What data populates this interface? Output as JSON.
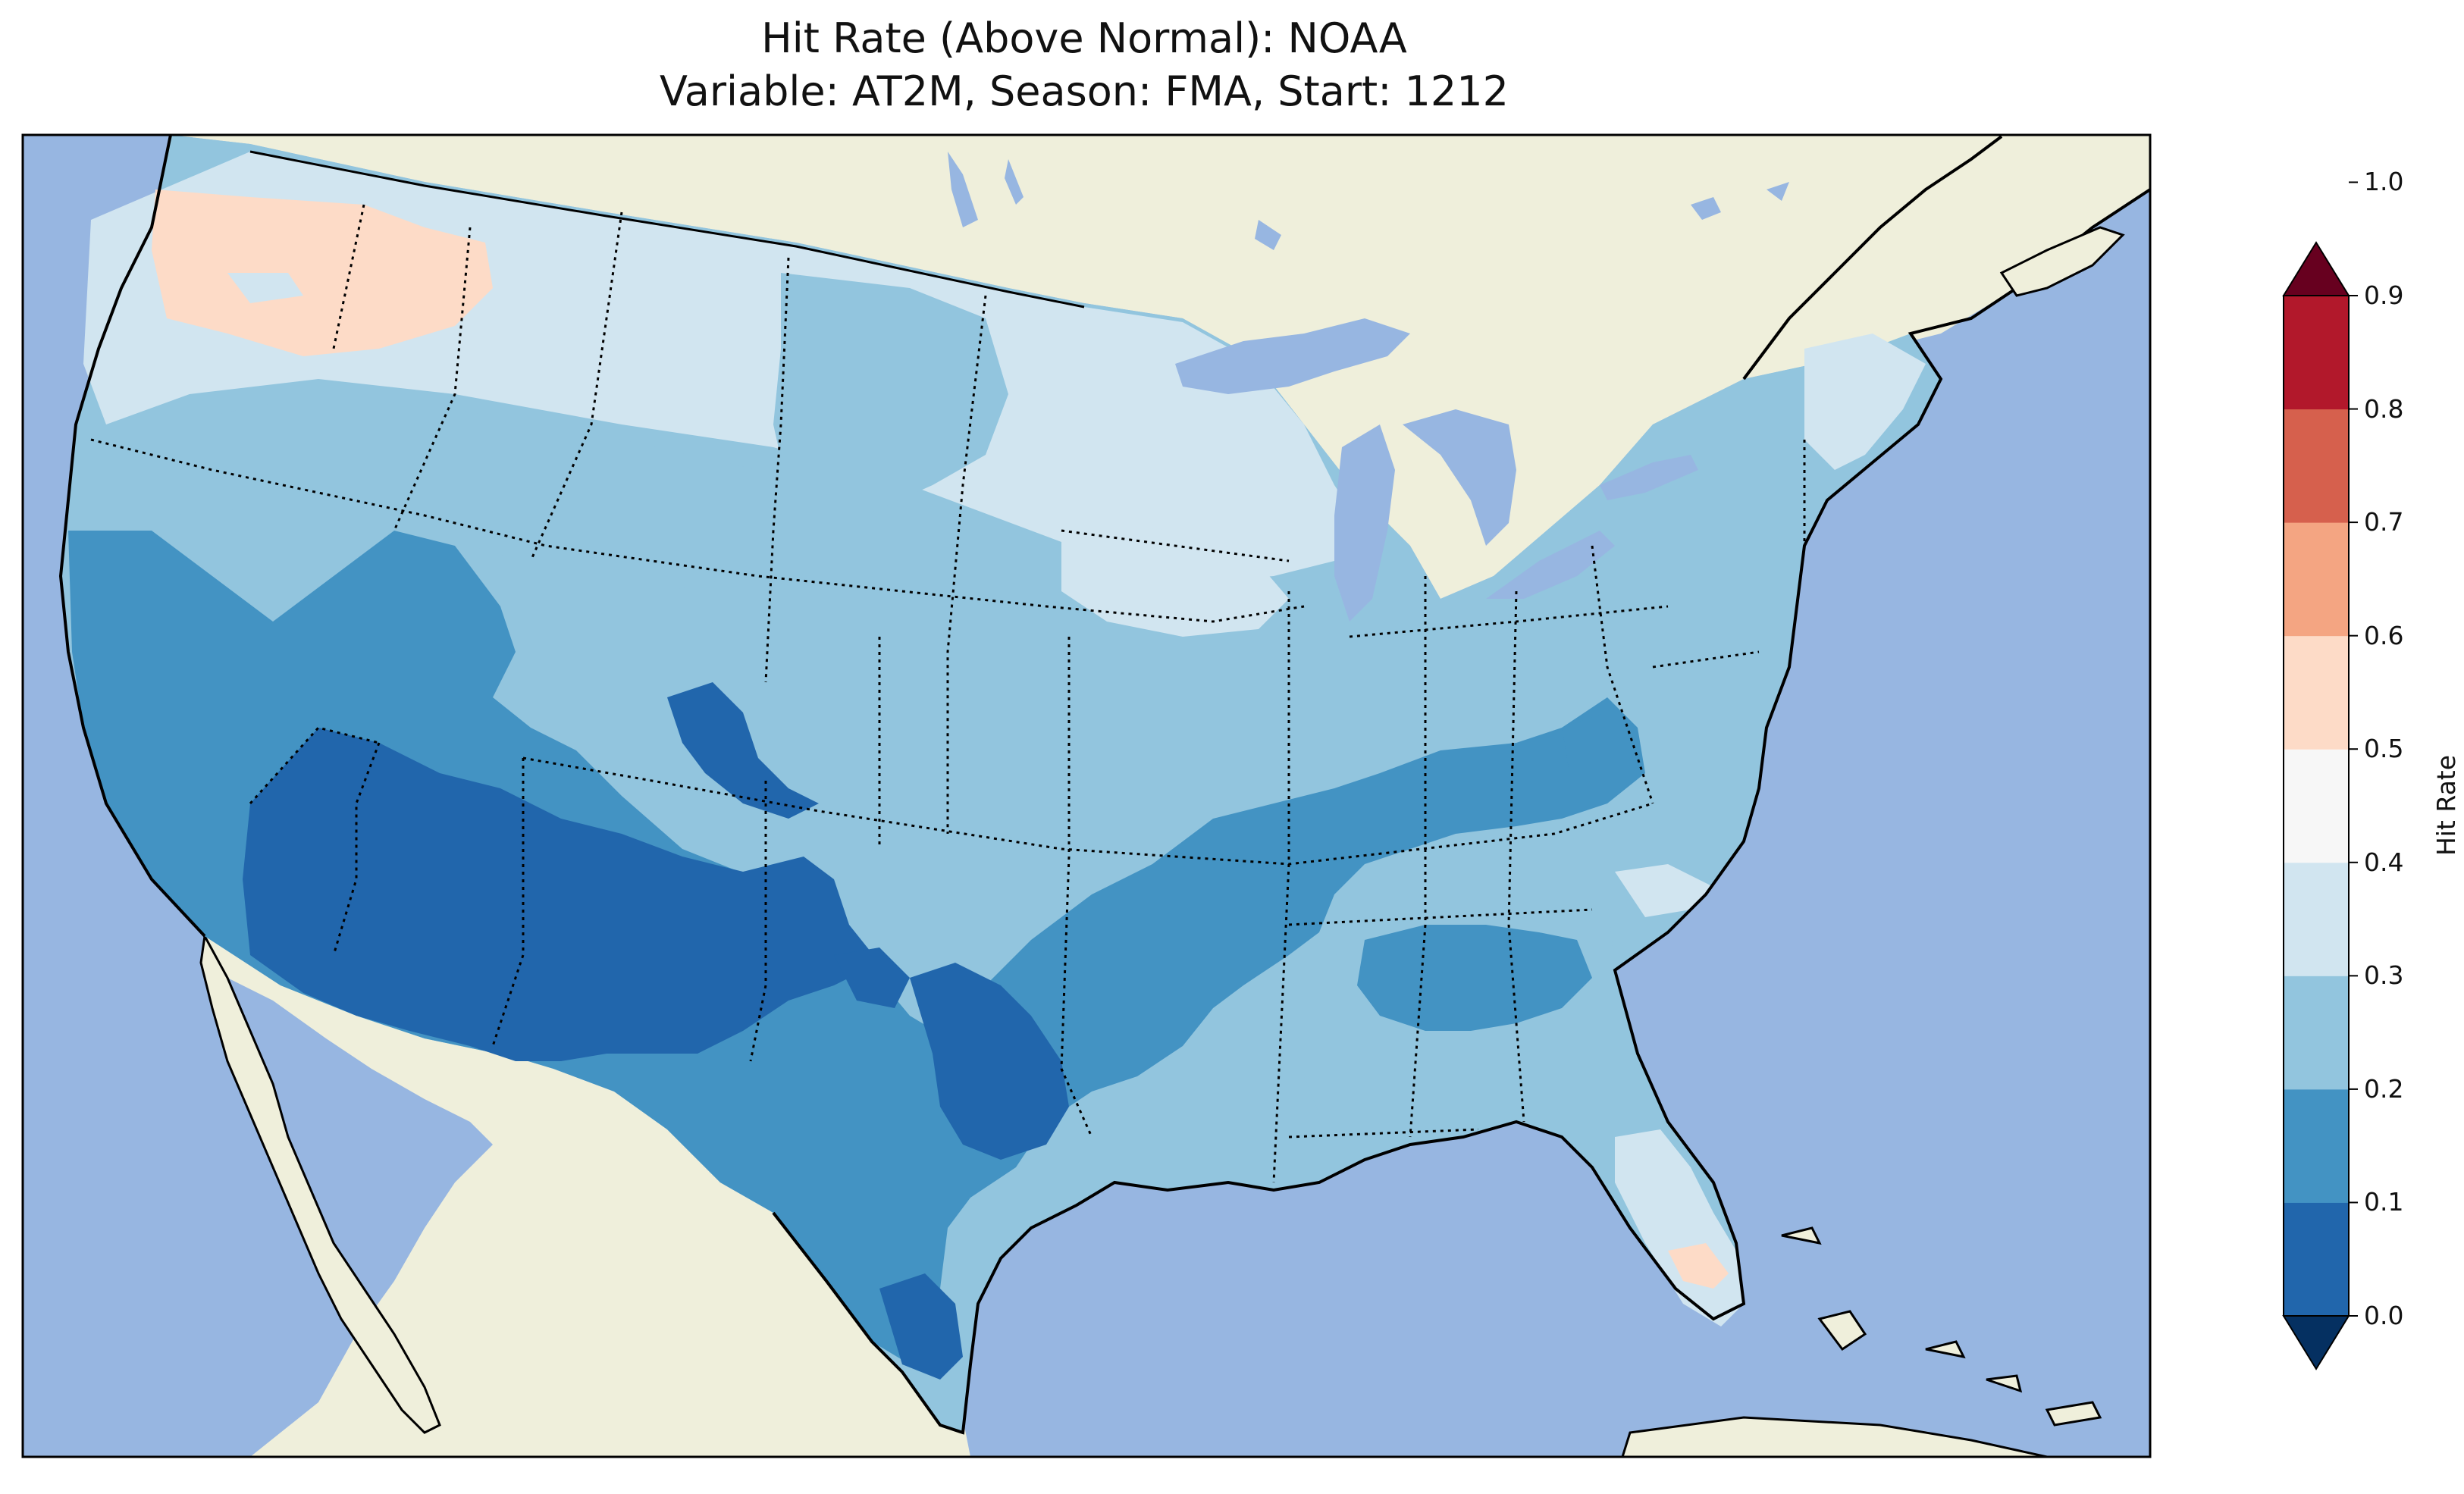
{
  "title": "Hit Rate (Above Normal): NOAA",
  "subtitle": "Variable: AT2M, Season: FMA, Start: 1212",
  "colorbar": {
    "label": "Hit Rate",
    "ticks": [
      "0.0",
      "0.1",
      "0.2",
      "0.3",
      "0.4",
      "0.5",
      "0.6",
      "0.7",
      "0.8",
      "0.9",
      "1.0"
    ],
    "colors": [
      "#053061",
      "#2166ac",
      "#4393c3",
      "#92c5de",
      "#d1e5f0",
      "#f7f7f7",
      "#fddbc7",
      "#f4a582",
      "#d6604d",
      "#b2182b",
      "#67001f"
    ],
    "extend": "both"
  },
  "map": {
    "ocean_color": "#97b6e1",
    "land_color": "#efefdb",
    "regions": [
      {
        "name": "pacific-northwest",
        "level": 0.55
      },
      {
        "name": "northern-tier",
        "level": 0.45
      },
      {
        "name": "northern-plains",
        "level": 0.35
      },
      {
        "name": "great-lakes",
        "level": 0.45
      },
      {
        "name": "northeast",
        "level": 0.35
      },
      {
        "name": "intermountain-west",
        "level": 0.35
      },
      {
        "name": "california-great-basin",
        "level": 0.25
      },
      {
        "name": "southwest",
        "level": 0.15
      },
      {
        "name": "southern-plains",
        "level": 0.25
      },
      {
        "name": "central-texas",
        "level": 0.15
      },
      {
        "name": "mid-south",
        "level": 0.25
      },
      {
        "name": "southeast",
        "level": 0.35
      },
      {
        "name": "florida",
        "level": 0.45
      },
      {
        "name": "south-florida",
        "level": 0.55
      }
    ]
  }
}
